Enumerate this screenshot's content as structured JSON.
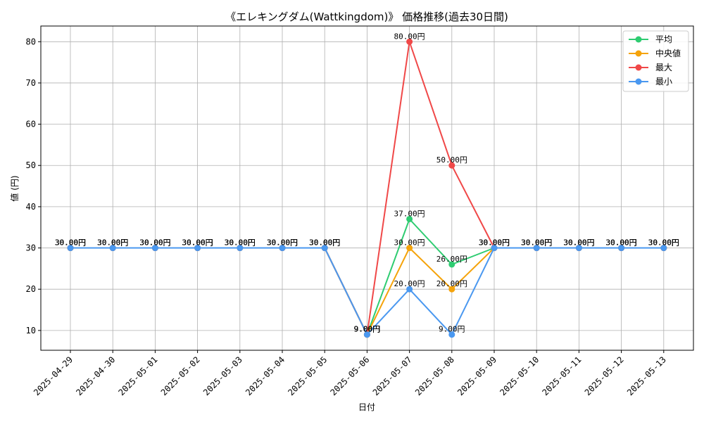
{
  "chart_data": {
    "type": "line",
    "title": "《エレキングダム(Wattkingdom)》 価格推移(過去30日間)",
    "xlabel": "日付",
    "ylabel": "値 (円)",
    "categories": [
      "2025-04-29",
      "2025-04-30",
      "2025-05-01",
      "2025-05-02",
      "2025-05-03",
      "2025-05-04",
      "2025-05-05",
      "2025-05-06",
      "2025-05-07",
      "2025-05-08",
      "2025-05-09",
      "2025-05-10",
      "2025-05-11",
      "2025-05-12",
      "2025-05-13"
    ],
    "ylim": [
      5.2,
      83.8
    ],
    "yticks": [
      10,
      20,
      30,
      40,
      50,
      60,
      70,
      80
    ],
    "grid": true,
    "legend_position": "top-right",
    "unit_suffix": "円",
    "series": [
      {
        "name": "平均",
        "color": "#2ecc71",
        "values": [
          30,
          30,
          30,
          30,
          30,
          30,
          30,
          9,
          37,
          26,
          30,
          30,
          30,
          30,
          30
        ]
      },
      {
        "name": "中央値",
        "color": "#f5a30a",
        "values": [
          30,
          30,
          30,
          30,
          30,
          30,
          30,
          9,
          30,
          20,
          30,
          30,
          30,
          30,
          30
        ]
      },
      {
        "name": "最大",
        "color": "#f04848",
        "values": [
          30,
          30,
          30,
          30,
          30,
          30,
          30,
          9,
          80,
          50,
          30,
          30,
          30,
          30,
          30
        ]
      },
      {
        "name": "最小",
        "color": "#4a98f0",
        "values": [
          30,
          30,
          30,
          30,
          30,
          30,
          30,
          9,
          20,
          9,
          30,
          30,
          30,
          30,
          30
        ]
      }
    ]
  }
}
